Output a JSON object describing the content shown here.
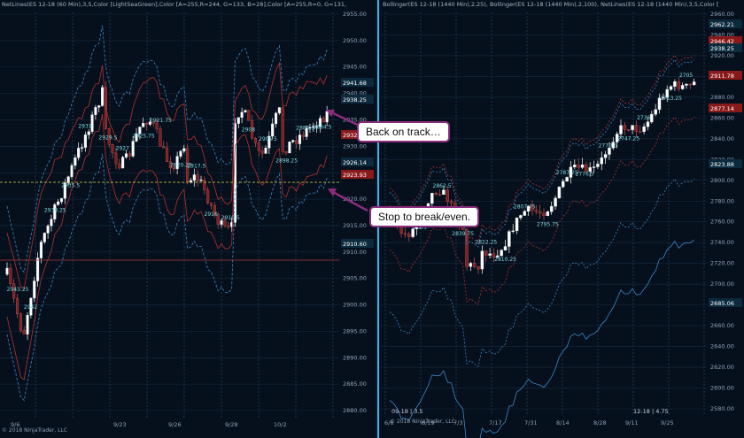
{
  "left_chart": {
    "title": "NetLines(ES 12-18 (60 Min),3,5,Color [LightSeaGreen],Color [A=255,R=244, G=133, B=28],Color [A=255,R=0, G=131,",
    "copyright": "© 2018 NinjaTrader, LLC",
    "price_axis": [
      "2955.00",
      "2950.00",
      "2945.00",
      "2940.00",
      "2935.00",
      "2930.00",
      "2925.00",
      "2920.00",
      "2915.00",
      "2910.00",
      "2905.00",
      "2900.00",
      "2895.00",
      "2890.00",
      "2885.00",
      "2880.00"
    ],
    "price_tags": [
      {
        "text": "2941.68",
        "color": "#0b2a3e"
      },
      {
        "text": "2938.25",
        "color": "#0b2a3e"
      },
      {
        "text": "2932",
        "color": "#8a1a1a"
      },
      {
        "text": "2926.14",
        "color": "#0b2a3e"
      },
      {
        "text": "2923.93",
        "color": "#8a1a1a"
      },
      {
        "text": "2910.60",
        "color": "#0b2a3e"
      }
    ],
    "date_labels": [
      "9/6",
      "9/23",
      "9/26",
      "9/28",
      "10/2"
    ],
    "swing_labels": [
      "2943.25",
      "2942",
      "2938.25",
      "2935.5",
      "2931",
      "2929.5",
      "2927",
      "2925.75",
      "2921.75",
      "2920.25",
      "2917.5",
      "2916",
      "2910.5",
      "2908",
      "2905.5",
      "2898.25",
      "2885.5",
      "2884.5"
    ],
    "colors": {
      "up": "#ffffff",
      "down": "#7a2020",
      "band_outer": "#b03030",
      "band_mid": "#3a88c8",
      "hline_green": "#d6d64a",
      "hline_red": "#a53a3a",
      "label": "#7fd8e0"
    }
  },
  "right_chart": {
    "title": "Bollinger(ES 12-18 (1440 Min),2,25), Bollinger(ES 12-18 (1440 Min),2,100), NetLines(ES 12-18 (1440 Min),3,5,Color [",
    "copyright": "© 2018 NinjaTrader, LLC",
    "price_axis": [
      "2960.00",
      "2940.00",
      "2920.00",
      "2900.00",
      "2880.00",
      "2860.00",
      "2840.00",
      "2820.00",
      "2800.00",
      "2780.00",
      "2760.00",
      "2740.00",
      "2720.00",
      "2700.00",
      "2680.00",
      "2660.00",
      "2640.00",
      "2620.00",
      "2600.00",
      "2580.00"
    ],
    "price_tags": [
      {
        "text": "2962.21",
        "color": "#0b2a3e"
      },
      {
        "text": "2946.42",
        "color": "#8a1a1a"
      },
      {
        "text": "2938.25",
        "color": "#0b2a3e"
      },
      {
        "text": "2911.78",
        "color": "#8a1a1a"
      },
      {
        "text": "2877.14",
        "color": "#8a1a1a"
      },
      {
        "text": "2823.88",
        "color": "#0b2a3e"
      },
      {
        "text": "2685.06",
        "color": "#0b2a3e"
      }
    ],
    "date_labels": [
      "6/6",
      "6/19",
      "7/3",
      "7/17",
      "7/31",
      "8/14",
      "8/28",
      "9/11",
      "9/25"
    ],
    "swing_labels": [
      "2930.75",
      "2881",
      "2862.5",
      "2839.75",
      "2822.25",
      "2810.25",
      "2807.75",
      "2795.75",
      "2787.25",
      "2776.5",
      "2770.5",
      "2747.25",
      "2736",
      "2713.25",
      "2705"
    ],
    "colors": {
      "up": "#ffffff",
      "down": "#7a2020",
      "band_outer": "#b03030",
      "band_mid": "#3a88c8",
      "label": "#7fd8e0"
    }
  },
  "stamps": {
    "left": "09-18 | 3.5",
    "right": "12-18 | 4.75"
  },
  "callouts": {
    "back_on_track": "Back on track…",
    "stop_break_even": "Stop to break/even."
  },
  "callout_border_color": "#8b2d7f"
}
